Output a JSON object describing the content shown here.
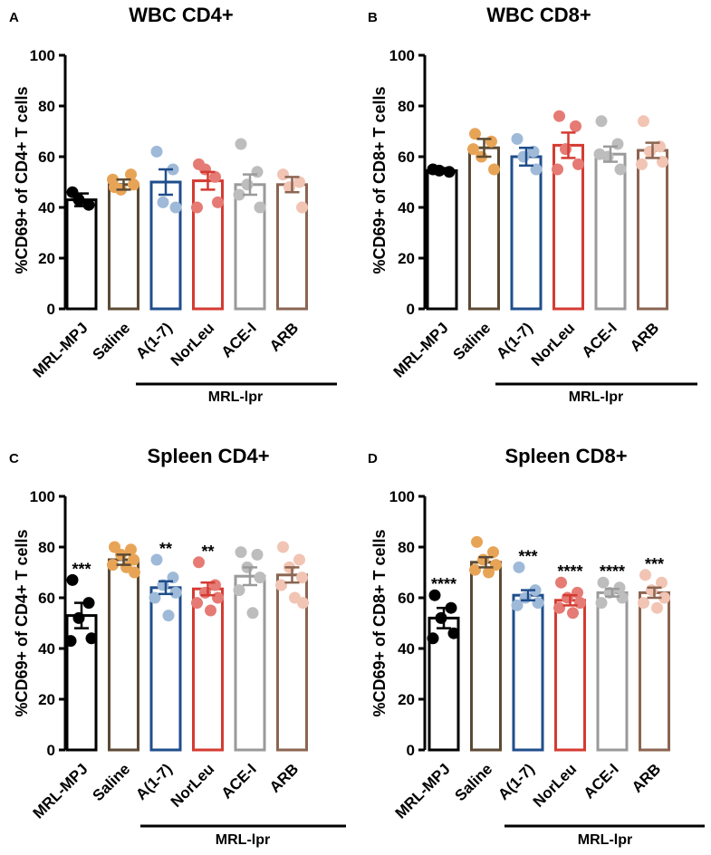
{
  "chart_data": [
    {
      "type": "bar",
      "panel": "A",
      "title": "WBC CD4+",
      "ylabel": "%CD69+ of CD4+ T cells",
      "group_label": "MRL-lpr",
      "ylim": [
        0,
        100
      ],
      "yticks": [
        "0",
        "20",
        "40",
        "60",
        "80",
        "100"
      ],
      "categories": [
        "MRL-MPJ",
        "Saline",
        "A(1-7)",
        "NorLeu",
        "ACE-I",
        "ARB"
      ],
      "values": [
        43,
        49,
        50,
        50.5,
        49,
        49
      ],
      "errors": [
        2.5,
        2,
        5,
        3.5,
        4,
        3
      ],
      "points": [
        [
          46,
          41,
          43
        ],
        [
          48,
          53,
          47,
          49,
          51
        ],
        [
          62,
          55,
          42,
          40
        ],
        [
          57,
          52,
          55,
          42,
          40
        ],
        [
          65,
          54,
          49,
          40,
          45
        ],
        [
          53,
          50,
          48,
          40
        ]
      ],
      "significance": [
        "",
        "",
        "",
        "",
        "",
        ""
      ],
      "bar_colors": [
        "#000000",
        "#5c4a34",
        "#1f4e8c",
        "#d43b32",
        "#9a9a9a",
        "#8b6552"
      ],
      "point_colors": [
        "#000000",
        "#e8a456",
        "#9fbad8",
        "#e57b74",
        "#bdbdbd",
        "#f1c4b4"
      ]
    },
    {
      "type": "bar",
      "panel": "B",
      "title": "WBC CD8+",
      "ylabel": "%CD69+ of CD8+ T cells",
      "group_label": "MRL-lpr",
      "ylim": [
        0,
        100
      ],
      "yticks": [
        "0",
        "20",
        "40",
        "60",
        "80",
        "100"
      ],
      "categories": [
        "MRL-MPJ",
        "Saline",
        "A(1-7)",
        "NorLeu",
        "ACE-I",
        "ARB"
      ],
      "values": [
        54.5,
        63.5,
        60,
        64.5,
        61,
        62.5
      ],
      "errors": [
        1,
        3.5,
        3.5,
        5,
        3,
        3
      ],
      "points": [
        [
          55,
          54,
          54.5
        ],
        [
          69,
          66,
          60,
          55,
          63
        ],
        [
          67,
          62,
          60,
          55
        ],
        [
          76,
          72,
          63,
          57,
          55
        ],
        [
          74,
          65,
          60,
          55,
          61
        ],
        [
          74,
          64,
          62,
          58,
          57
        ]
      ],
      "significance": [
        "",
        "",
        "",
        "",
        "",
        ""
      ],
      "bar_colors": [
        "#000000",
        "#5c4a34",
        "#1f4e8c",
        "#d43b32",
        "#9a9a9a",
        "#8b6552"
      ],
      "point_colors": [
        "#000000",
        "#e8a456",
        "#9fbad8",
        "#e57b74",
        "#bdbdbd",
        "#f1c4b4"
      ]
    },
    {
      "type": "bar",
      "panel": "C",
      "title": "Spleen CD4+",
      "ylabel": "%CD69+ of CD4+ T cells",
      "group_label": "MRL-lpr",
      "ylim": [
        0,
        100
      ],
      "yticks": [
        "0",
        "20",
        "40",
        "60",
        "80",
        "100"
      ],
      "categories": [
        "MRL-MPJ",
        "Saline",
        "A(1-7)",
        "NorLeu",
        "ACE-I",
        "ARB"
      ],
      "values": [
        53,
        75,
        64,
        63.5,
        68.5,
        69
      ],
      "errors": [
        5,
        2,
        2.5,
        2.5,
        3.5,
        3
      ],
      "points": [
        [
          67,
          58,
          52,
          44,
          43
        ],
        [
          80,
          79,
          77,
          75,
          73,
          72,
          70
        ],
        [
          75,
          68,
          65,
          62,
          60,
          53
        ],
        [
          74,
          65,
          62,
          60,
          58,
          55
        ],
        [
          78,
          77,
          72,
          68,
          63,
          54
        ],
        [
          80,
          75,
          72,
          68,
          65,
          60,
          58
        ]
      ],
      "significance": [
        "***",
        "",
        "**",
        "**",
        "",
        ""
      ],
      "bar_colors": [
        "#000000",
        "#5c4a34",
        "#1f4e8c",
        "#d43b32",
        "#9a9a9a",
        "#8b6552"
      ],
      "point_colors": [
        "#000000",
        "#e8a456",
        "#9fbad8",
        "#e57b74",
        "#bdbdbd",
        "#f1c4b4"
      ]
    },
    {
      "type": "bar",
      "panel": "D",
      "title": "Spleen CD8+",
      "ylabel": "%CD69+ of CD8+ T cells",
      "group_label": "MRL-lpr",
      "ylim": [
        0,
        100
      ],
      "yticks": [
        "0",
        "20",
        "40",
        "60",
        "80",
        "100"
      ],
      "categories": [
        "MRL-MPJ",
        "Saline",
        "A(1-7)",
        "NorLeu",
        "ACE-I",
        "ARB"
      ],
      "values": [
        52,
        74,
        61,
        59,
        62,
        62
      ],
      "errors": [
        4,
        2,
        2,
        2,
        1.5,
        2
      ],
      "points": [
        [
          61,
          56,
          52,
          46,
          44
        ],
        [
          82,
          78,
          75,
          73,
          71,
          70
        ],
        [
          72,
          63,
          60,
          58,
          57
        ],
        [
          66,
          62,
          60,
          58,
          56,
          54
        ],
        [
          66,
          64,
          62,
          60,
          58
        ],
        [
          69,
          66,
          63,
          60,
          58,
          56
        ]
      ],
      "significance": [
        "****",
        "",
        "***",
        "****",
        "****",
        "***"
      ],
      "bar_colors": [
        "#000000",
        "#5c4a34",
        "#1f4e8c",
        "#d43b32",
        "#9a9a9a",
        "#8b6552"
      ],
      "point_colors": [
        "#000000",
        "#e8a456",
        "#9fbad8",
        "#e57b74",
        "#bdbdbd",
        "#f1c4b4"
      ]
    }
  ]
}
